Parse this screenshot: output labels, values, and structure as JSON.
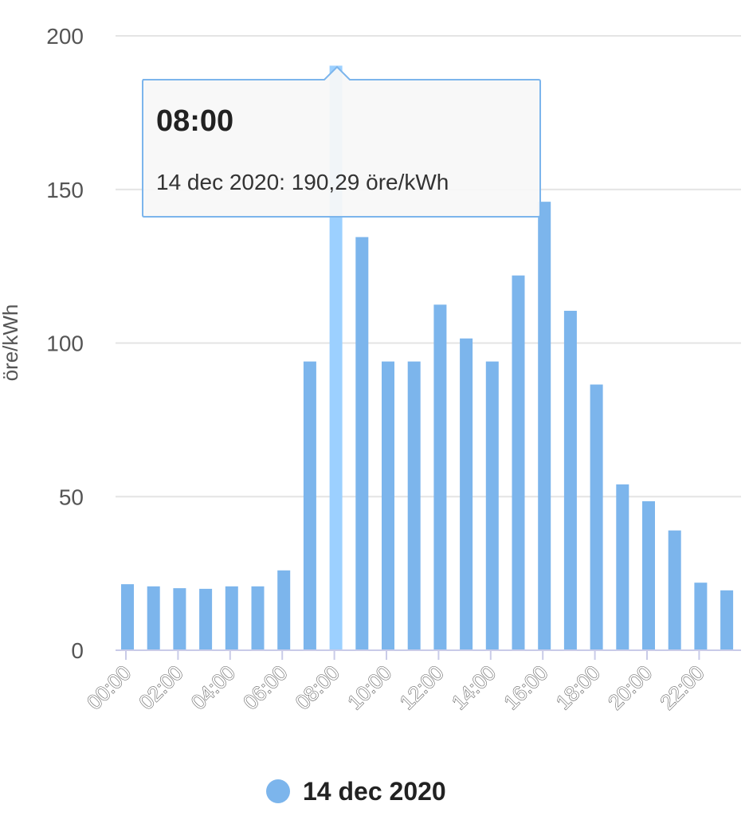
{
  "chart_data": {
    "type": "bar",
    "ylabel": "öre/kWh",
    "ylim": [
      0,
      200
    ],
    "yticks": [
      "0",
      "50",
      "100",
      "150",
      "200"
    ],
    "categories": [
      "00:00",
      "01:00",
      "02:00",
      "03:00",
      "04:00",
      "05:00",
      "06:00",
      "07:00",
      "08:00",
      "09:00",
      "10:00",
      "11:00",
      "12:00",
      "13:00",
      "14:00",
      "15:00",
      "16:00",
      "17:00",
      "18:00",
      "19:00",
      "20:00",
      "21:00",
      "22:00",
      "23:00"
    ],
    "xtick_labels": [
      "00:00",
      "02:00",
      "04:00",
      "06:00",
      "08:00",
      "10:00",
      "12:00",
      "14:00",
      "16:00",
      "18:00",
      "20:00",
      "22:00"
    ],
    "series": [
      {
        "name": "14 dec 2020",
        "color": "#7cb5ec",
        "values": [
          21.5,
          20.8,
          20.2,
          20.0,
          20.8,
          20.8,
          26.0,
          94.0,
          190.29,
          134.5,
          94.0,
          94.0,
          112.5,
          101.5,
          94.0,
          122.0,
          146.0,
          110.5,
          86.5,
          54.0,
          48.5,
          39.0,
          22.0,
          19.5
        ]
      }
    ],
    "highlight_color": "#9cd0ff",
    "tooltip": {
      "index": 8,
      "title": "08:00",
      "body": "14 dec 2020: 190,29 öre/kWh"
    },
    "legend": {
      "label": "14 dec 2020",
      "position": "bottom-center"
    },
    "grid": true
  }
}
